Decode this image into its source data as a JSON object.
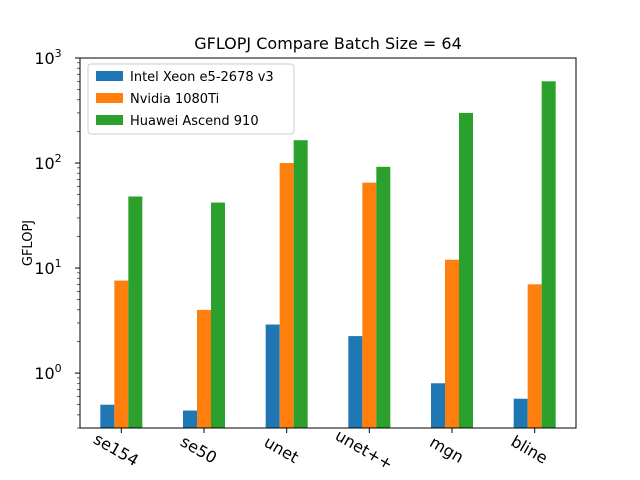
{
  "chart_data": {
    "type": "bar",
    "title": "GFLOPJ Compare Batch Size = 64",
    "ylabel": "GFLOPJ",
    "xlabel": "",
    "yscale": "log",
    "ylim": [
      0.3,
      1000
    ],
    "grid": false,
    "legend_position": "top-left",
    "categories": [
      "se154",
      "se50",
      "unet",
      "unet++",
      "mgn",
      "bline"
    ],
    "series": [
      {
        "name": "Intel Xeon e5-2678 v3",
        "color": "#1f77b4",
        "values": [
          0.5,
          0.44,
          2.9,
          2.25,
          0.8,
          0.57
        ]
      },
      {
        "name": "Nvidia 1080Ti",
        "color": "#ff7f0e",
        "values": [
          7.6,
          4.0,
          100,
          65,
          12,
          7.0
        ]
      },
      {
        "name": "Huawei Ascend 910",
        "color": "#2ca02c",
        "values": [
          48,
          42,
          165,
          92,
          300,
          600
        ]
      }
    ]
  }
}
